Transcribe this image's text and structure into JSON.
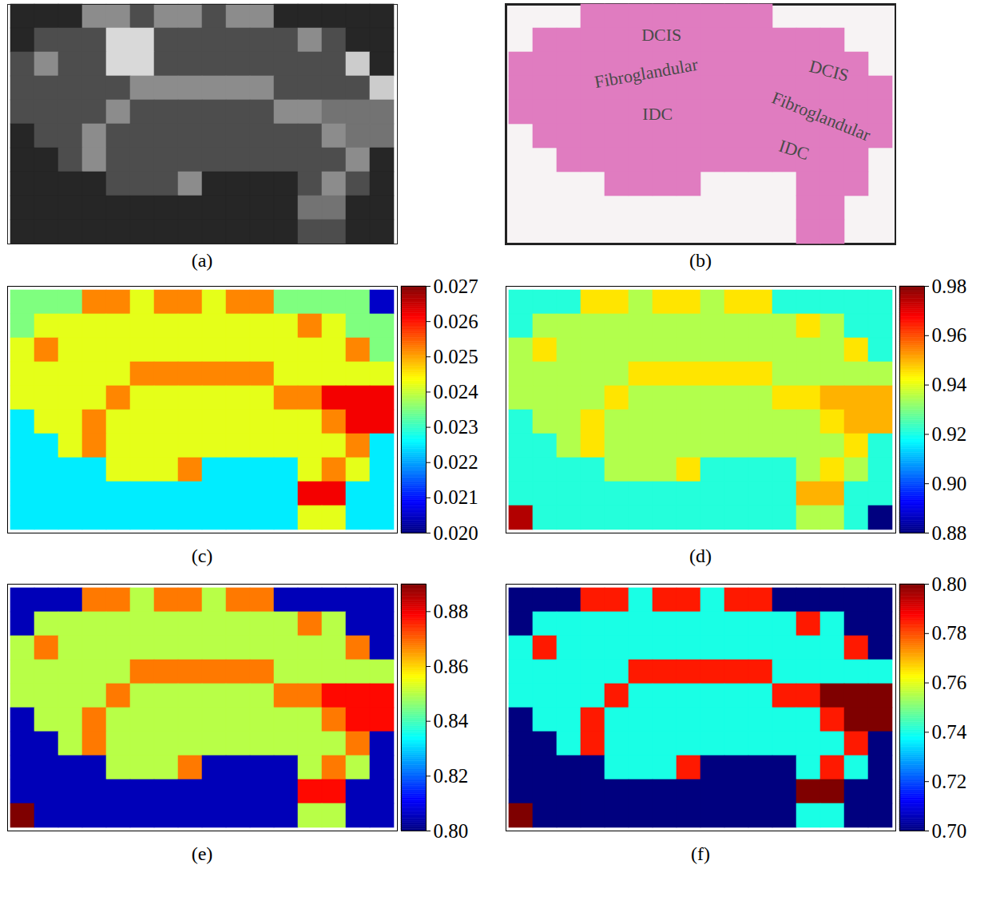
{
  "chart_data": [
    {
      "type": "image",
      "caption": "(a)",
      "range": [
        0,
        1
      ],
      "cells": [
        [
          0.15,
          0.15,
          0.15,
          0.55,
          0.55,
          0.3,
          0.55,
          0.55,
          0.3,
          0.55,
          0.55,
          0.15,
          0.15,
          0.15,
          0.15,
          0.15
        ],
        [
          0.15,
          0.3,
          0.3,
          0.3,
          0.85,
          0.85,
          0.3,
          0.3,
          0.3,
          0.3,
          0.3,
          0.3,
          0.55,
          0.3,
          0.15,
          0.15
        ],
        [
          0.3,
          0.55,
          0.3,
          0.3,
          0.85,
          0.85,
          0.3,
          0.3,
          0.3,
          0.3,
          0.3,
          0.3,
          0.3,
          0.3,
          0.8,
          0.15
        ],
        [
          0.3,
          0.3,
          0.3,
          0.3,
          0.3,
          0.55,
          0.55,
          0.55,
          0.55,
          0.55,
          0.55,
          0.3,
          0.3,
          0.3,
          0.3,
          0.8
        ],
        [
          0.3,
          0.3,
          0.3,
          0.3,
          0.55,
          0.3,
          0.3,
          0.3,
          0.3,
          0.3,
          0.3,
          0.55,
          0.55,
          0.45,
          0.45,
          0.45
        ],
        [
          0.15,
          0.3,
          0.3,
          0.55,
          0.3,
          0.3,
          0.3,
          0.3,
          0.3,
          0.3,
          0.3,
          0.3,
          0.3,
          0.55,
          0.45,
          0.45
        ],
        [
          0.15,
          0.15,
          0.3,
          0.55,
          0.3,
          0.3,
          0.3,
          0.3,
          0.3,
          0.3,
          0.3,
          0.3,
          0.3,
          0.3,
          0.55,
          0.15
        ],
        [
          0.15,
          0.15,
          0.15,
          0.15,
          0.3,
          0.3,
          0.3,
          0.55,
          0.15,
          0.15,
          0.15,
          0.15,
          0.3,
          0.55,
          0.3,
          0.15
        ],
        [
          0.15,
          0.15,
          0.15,
          0.15,
          0.15,
          0.15,
          0.15,
          0.15,
          0.15,
          0.15,
          0.15,
          0.15,
          0.45,
          0.45,
          0.15,
          0.15
        ],
        [
          0.15,
          0.15,
          0.15,
          0.15,
          0.15,
          0.15,
          0.15,
          0.15,
          0.15,
          0.15,
          0.15,
          0.15,
          0.3,
          0.3,
          0.15,
          0.15
        ]
      ]
    },
    {
      "type": "image",
      "caption": "(b)",
      "color": "#e07cc0",
      "annotations": [
        "DCIS",
        "Fibroglandular",
        "IDC",
        "DCIS",
        "Fibroglandular",
        "IDC"
      ],
      "mask": [
        [
          0,
          0,
          0,
          1,
          1,
          1,
          1,
          1,
          1,
          1,
          1,
          0,
          0,
          0,
          0,
          0
        ],
        [
          0,
          1,
          1,
          1,
          1,
          1,
          1,
          1,
          1,
          1,
          1,
          1,
          1,
          1,
          0,
          0
        ],
        [
          1,
          1,
          1,
          1,
          1,
          1,
          1,
          1,
          1,
          1,
          1,
          1,
          1,
          1,
          1,
          0
        ],
        [
          1,
          1,
          1,
          1,
          1,
          1,
          1,
          1,
          1,
          1,
          1,
          1,
          1,
          1,
          1,
          1
        ],
        [
          1,
          1,
          1,
          1,
          1,
          1,
          1,
          1,
          1,
          1,
          1,
          1,
          1,
          1,
          1,
          1
        ],
        [
          0,
          1,
          1,
          1,
          1,
          1,
          1,
          1,
          1,
          1,
          1,
          1,
          1,
          1,
          1,
          1
        ],
        [
          0,
          0,
          1,
          1,
          1,
          1,
          1,
          1,
          1,
          1,
          1,
          1,
          1,
          1,
          1,
          0
        ],
        [
          0,
          0,
          0,
          0,
          1,
          1,
          1,
          1,
          0,
          0,
          0,
          0,
          1,
          1,
          1,
          0
        ],
        [
          0,
          0,
          0,
          0,
          0,
          0,
          0,
          0,
          0,
          0,
          0,
          0,
          1,
          1,
          0,
          0
        ],
        [
          0,
          0,
          0,
          0,
          0,
          0,
          0,
          0,
          0,
          0,
          0,
          0,
          1,
          1,
          0,
          0
        ]
      ]
    },
    {
      "type": "heatmap",
      "caption": "(c)",
      "color_range": [
        0.02,
        0.027
      ],
      "color_ticks": [
        {
          "value": 0.02,
          "label": "0.020"
        },
        0.021,
        0.022,
        0.023,
        0.024,
        0.025,
        0.026,
        0.027
      ],
      "cells": [
        [
          0.0235,
          0.0235,
          0.0235,
          0.0252,
          0.0252,
          0.0242,
          0.0252,
          0.0252,
          0.0242,
          0.0252,
          0.0252,
          0.0235,
          0.0235,
          0.0235,
          0.0235,
          0.0205
        ],
        [
          0.0235,
          0.0242,
          0.0242,
          0.0242,
          0.0242,
          0.0242,
          0.0242,
          0.0242,
          0.0242,
          0.0242,
          0.0242,
          0.0242,
          0.0252,
          0.0242,
          0.0235,
          0.0235
        ],
        [
          0.0242,
          0.0252,
          0.0242,
          0.0242,
          0.0242,
          0.0242,
          0.0242,
          0.0242,
          0.0242,
          0.0242,
          0.0242,
          0.0242,
          0.0242,
          0.0242,
          0.0252,
          0.0235
        ],
        [
          0.0242,
          0.0242,
          0.0242,
          0.0242,
          0.0242,
          0.0252,
          0.0252,
          0.0252,
          0.0252,
          0.0252,
          0.0252,
          0.0242,
          0.0242,
          0.0242,
          0.0242,
          0.0242
        ],
        [
          0.0242,
          0.0242,
          0.0242,
          0.0242,
          0.0252,
          0.0242,
          0.0242,
          0.0242,
          0.0242,
          0.0242,
          0.0242,
          0.0252,
          0.0252,
          0.0262,
          0.0262,
          0.0262
        ],
        [
          0.0225,
          0.0242,
          0.0242,
          0.0252,
          0.0242,
          0.0242,
          0.0242,
          0.0242,
          0.0242,
          0.0242,
          0.0242,
          0.0242,
          0.0242,
          0.0252,
          0.0262,
          0.0262
        ],
        [
          0.0225,
          0.0225,
          0.0242,
          0.0252,
          0.0242,
          0.0242,
          0.0242,
          0.0242,
          0.0242,
          0.0242,
          0.0242,
          0.0242,
          0.0242,
          0.0242,
          0.0252,
          0.0225
        ],
        [
          0.0225,
          0.0225,
          0.0225,
          0.0225,
          0.0242,
          0.0242,
          0.0242,
          0.0252,
          0.0225,
          0.0225,
          0.0225,
          0.0225,
          0.0242,
          0.0252,
          0.0242,
          0.0225
        ],
        [
          0.0225,
          0.0225,
          0.0225,
          0.0225,
          0.0225,
          0.0225,
          0.0225,
          0.0225,
          0.0225,
          0.0225,
          0.0225,
          0.0225,
          0.0262,
          0.0262,
          0.0225,
          0.0225
        ],
        [
          0.0225,
          0.0225,
          0.0225,
          0.0225,
          0.0225,
          0.0225,
          0.0225,
          0.0225,
          0.0225,
          0.0225,
          0.0225,
          0.0225,
          0.0242,
          0.0242,
          0.0225,
          0.0225
        ]
      ]
    },
    {
      "type": "heatmap",
      "caption": "(d)",
      "color_range": [
        0.88,
        0.98
      ],
      "color_ticks": [
        0.88,
        {
          "value": 0.9,
          "label": "0.90"
        },
        0.92,
        0.94,
        0.96,
        0.98
      ],
      "cells": [
        [
          0.921,
          0.921,
          0.921,
          0.945,
          0.945,
          0.935,
          0.945,
          0.945,
          0.935,
          0.945,
          0.945,
          0.921,
          0.921,
          0.921,
          0.921,
          0.921
        ],
        [
          0.921,
          0.935,
          0.935,
          0.935,
          0.935,
          0.935,
          0.935,
          0.935,
          0.935,
          0.935,
          0.935,
          0.935,
          0.945,
          0.935,
          0.921,
          0.921
        ],
        [
          0.935,
          0.945,
          0.935,
          0.935,
          0.935,
          0.935,
          0.935,
          0.935,
          0.935,
          0.935,
          0.935,
          0.935,
          0.935,
          0.935,
          0.945,
          0.921
        ],
        [
          0.935,
          0.935,
          0.935,
          0.935,
          0.935,
          0.945,
          0.945,
          0.945,
          0.945,
          0.945,
          0.945,
          0.935,
          0.935,
          0.935,
          0.935,
          0.935
        ],
        [
          0.935,
          0.935,
          0.935,
          0.935,
          0.945,
          0.935,
          0.935,
          0.935,
          0.935,
          0.935,
          0.935,
          0.945,
          0.945,
          0.95,
          0.95,
          0.95
        ],
        [
          0.921,
          0.935,
          0.935,
          0.945,
          0.935,
          0.935,
          0.935,
          0.935,
          0.935,
          0.935,
          0.935,
          0.935,
          0.935,
          0.945,
          0.95,
          0.95
        ],
        [
          0.921,
          0.921,
          0.935,
          0.945,
          0.935,
          0.935,
          0.935,
          0.935,
          0.935,
          0.935,
          0.935,
          0.935,
          0.935,
          0.935,
          0.945,
          0.921
        ],
        [
          0.921,
          0.921,
          0.921,
          0.921,
          0.935,
          0.935,
          0.935,
          0.945,
          0.921,
          0.921,
          0.921,
          0.921,
          0.935,
          0.945,
          0.935,
          0.921
        ],
        [
          0.921,
          0.921,
          0.921,
          0.921,
          0.921,
          0.921,
          0.921,
          0.921,
          0.921,
          0.921,
          0.921,
          0.921,
          0.95,
          0.95,
          0.921,
          0.921
        ],
        [
          0.975,
          0.921,
          0.921,
          0.921,
          0.921,
          0.921,
          0.921,
          0.921,
          0.921,
          0.921,
          0.921,
          0.921,
          0.935,
          0.935,
          0.921,
          0.88
        ]
      ]
    },
    {
      "type": "heatmap",
      "caption": "(e)",
      "color_range": [
        0.8,
        0.89
      ],
      "color_ticks": [
        {
          "value": 0.8,
          "label": "0.80"
        },
        0.82,
        0.84,
        0.86,
        0.88
      ],
      "cells": [
        [
          0.805,
          0.805,
          0.805,
          0.868,
          0.868,
          0.85,
          0.868,
          0.868,
          0.85,
          0.868,
          0.868,
          0.805,
          0.805,
          0.805,
          0.805,
          0.805
        ],
        [
          0.805,
          0.85,
          0.85,
          0.85,
          0.85,
          0.85,
          0.85,
          0.85,
          0.85,
          0.85,
          0.85,
          0.85,
          0.868,
          0.85,
          0.805,
          0.805
        ],
        [
          0.85,
          0.868,
          0.85,
          0.85,
          0.85,
          0.85,
          0.85,
          0.85,
          0.85,
          0.85,
          0.85,
          0.85,
          0.85,
          0.85,
          0.868,
          0.805
        ],
        [
          0.85,
          0.85,
          0.85,
          0.85,
          0.85,
          0.868,
          0.868,
          0.868,
          0.868,
          0.868,
          0.868,
          0.85,
          0.85,
          0.85,
          0.85,
          0.85
        ],
        [
          0.85,
          0.85,
          0.85,
          0.85,
          0.868,
          0.85,
          0.85,
          0.85,
          0.85,
          0.85,
          0.85,
          0.868,
          0.868,
          0.878,
          0.878,
          0.878
        ],
        [
          0.805,
          0.85,
          0.85,
          0.868,
          0.85,
          0.85,
          0.85,
          0.85,
          0.85,
          0.85,
          0.85,
          0.85,
          0.85,
          0.868,
          0.878,
          0.878
        ],
        [
          0.805,
          0.805,
          0.85,
          0.868,
          0.85,
          0.85,
          0.85,
          0.85,
          0.85,
          0.85,
          0.85,
          0.85,
          0.85,
          0.85,
          0.868,
          0.805
        ],
        [
          0.805,
          0.805,
          0.805,
          0.805,
          0.85,
          0.85,
          0.85,
          0.868,
          0.805,
          0.805,
          0.805,
          0.805,
          0.85,
          0.868,
          0.85,
          0.805
        ],
        [
          0.805,
          0.805,
          0.805,
          0.805,
          0.805,
          0.805,
          0.805,
          0.805,
          0.805,
          0.805,
          0.805,
          0.805,
          0.878,
          0.878,
          0.805,
          0.805
        ],
        [
          0.89,
          0.805,
          0.805,
          0.805,
          0.805,
          0.805,
          0.805,
          0.805,
          0.805,
          0.805,
          0.805,
          0.805,
          0.85,
          0.85,
          0.805,
          0.805
        ]
      ]
    },
    {
      "type": "heatmap",
      "caption": "(f)",
      "color_range": [
        0.7,
        0.8
      ],
      "color_ticks": [
        {
          "value": 0.7,
          "label": "0.70"
        },
        0.72,
        0.74,
        0.76,
        0.78,
        {
          "value": 0.8,
          "label": "0.80"
        }
      ],
      "cells": [
        [
          0.7,
          0.7,
          0.7,
          0.785,
          0.785,
          0.74,
          0.785,
          0.785,
          0.74,
          0.785,
          0.785,
          0.7,
          0.7,
          0.7,
          0.7,
          0.7
        ],
        [
          0.7,
          0.74,
          0.74,
          0.74,
          0.74,
          0.74,
          0.74,
          0.74,
          0.74,
          0.74,
          0.74,
          0.74,
          0.785,
          0.74,
          0.7,
          0.7
        ],
        [
          0.74,
          0.785,
          0.74,
          0.74,
          0.74,
          0.74,
          0.74,
          0.74,
          0.74,
          0.74,
          0.74,
          0.74,
          0.74,
          0.74,
          0.785,
          0.7
        ],
        [
          0.74,
          0.74,
          0.74,
          0.74,
          0.74,
          0.785,
          0.785,
          0.785,
          0.785,
          0.785,
          0.785,
          0.74,
          0.74,
          0.74,
          0.74,
          0.74
        ],
        [
          0.74,
          0.74,
          0.74,
          0.74,
          0.785,
          0.74,
          0.74,
          0.74,
          0.74,
          0.74,
          0.74,
          0.785,
          0.785,
          0.8,
          0.8,
          0.8
        ],
        [
          0.7,
          0.74,
          0.74,
          0.785,
          0.74,
          0.74,
          0.74,
          0.74,
          0.74,
          0.74,
          0.74,
          0.74,
          0.74,
          0.785,
          0.8,
          0.8
        ],
        [
          0.7,
          0.7,
          0.74,
          0.785,
          0.74,
          0.74,
          0.74,
          0.74,
          0.74,
          0.74,
          0.74,
          0.74,
          0.74,
          0.74,
          0.785,
          0.7
        ],
        [
          0.7,
          0.7,
          0.7,
          0.7,
          0.74,
          0.74,
          0.74,
          0.785,
          0.7,
          0.7,
          0.7,
          0.7,
          0.74,
          0.785,
          0.74,
          0.7
        ],
        [
          0.7,
          0.7,
          0.7,
          0.7,
          0.7,
          0.7,
          0.7,
          0.7,
          0.7,
          0.7,
          0.7,
          0.7,
          0.8,
          0.8,
          0.7,
          0.7
        ],
        [
          0.8,
          0.7,
          0.7,
          0.7,
          0.7,
          0.7,
          0.7,
          0.7,
          0.7,
          0.7,
          0.7,
          0.7,
          0.74,
          0.74,
          0.7,
          0.7
        ]
      ]
    }
  ]
}
